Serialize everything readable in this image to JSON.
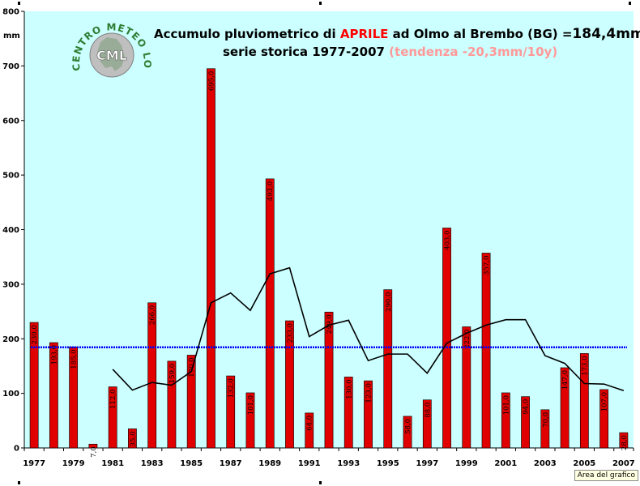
{
  "chart_data": {
    "type": "bar",
    "title": {
      "line1_prefix": "Accumulo pluviometrico di ",
      "line1_highlight": "APRILE",
      "line1_suffix": " ad Olmo al Brembo (BG) =",
      "line1_value": "184,4mm",
      "line2": "serie storica 1977-2007",
      "line2_trend": "(tendenza -20,3mm/10y)"
    },
    "ylabel": "mm",
    "ylim": [
      0,
      800
    ],
    "yticks": [
      0,
      100,
      200,
      300,
      400,
      500,
      600,
      700,
      800
    ],
    "x": [
      1977,
      1978,
      1979,
      1980,
      1981,
      1982,
      1983,
      1984,
      1985,
      1986,
      1987,
      1988,
      1989,
      1990,
      1991,
      1992,
      1993,
      1994,
      1995,
      1996,
      1997,
      1998,
      1999,
      2000,
      2001,
      2002,
      2003,
      2004,
      2005,
      2006,
      2007
    ],
    "xtick_labels": [
      "1977",
      "1979",
      "1981",
      "1983",
      "1985",
      "1987",
      "1989",
      "1991",
      "1993",
      "1995",
      "1997",
      "1999",
      "2001",
      "2003",
      "2005",
      "2007"
    ],
    "series": [
      {
        "kind": "bar",
        "values": [
          230,
          193,
          185,
          7,
          112,
          35,
          266,
          159,
          170,
          695,
          132,
          101,
          493,
          233,
          64,
          249,
          130,
          123,
          290,
          58,
          88,
          403,
          222,
          357,
          101,
          94,
          70,
          147,
          173,
          107,
          28
        ],
        "labels": [
          "230,0",
          "193,0",
          "185,0",
          "7,0",
          "112,0",
          "35,0",
          "266,0",
          "159,0",
          "170,0",
          "695,0",
          "132,0",
          "101,0",
          "493,0",
          "233,0",
          "64,0",
          "249,0",
          "130,0",
          "123,0",
          "290,0",
          "58,0",
          "88,0",
          "403,0",
          "222,0",
          "357,0",
          "101,0",
          "94,0",
          "70,0",
          "147,0",
          "173,0",
          "107,0",
          "28,0"
        ],
        "color": "#e00000"
      },
      {
        "kind": "line",
        "x": [
          1981,
          1982,
          1983,
          1984,
          1985,
          1986,
          1987,
          1988,
          1989,
          1990,
          1991,
          1992,
          1993,
          1994,
          1995,
          1996,
          1997,
          1998,
          1999,
          2000,
          2001,
          2002,
          2003,
          2004,
          2005,
          2006,
          2007
        ],
        "values": [
          144,
          106,
          120,
          115,
          140,
          266,
          284,
          252,
          319,
          330,
          204,
          225,
          234,
          160,
          172,
          172,
          137,
          192,
          210,
          225,
          235,
          235,
          169,
          155,
          118,
          117,
          105
        ],
        "color": "#000000"
      },
      {
        "kind": "reference",
        "value": 184.4,
        "color": "#0000ff"
      }
    ],
    "grid": false,
    "plot_background": "#ccffff",
    "frame_background": "#ffffff",
    "title_highlight_color": "#ff0000",
    "trend_color": "#ff9999"
  },
  "logo": {
    "arc_text": "CENTRO METEO LOMBARDO",
    "center_text": "CML"
  },
  "tooltip": "Area del grafico"
}
